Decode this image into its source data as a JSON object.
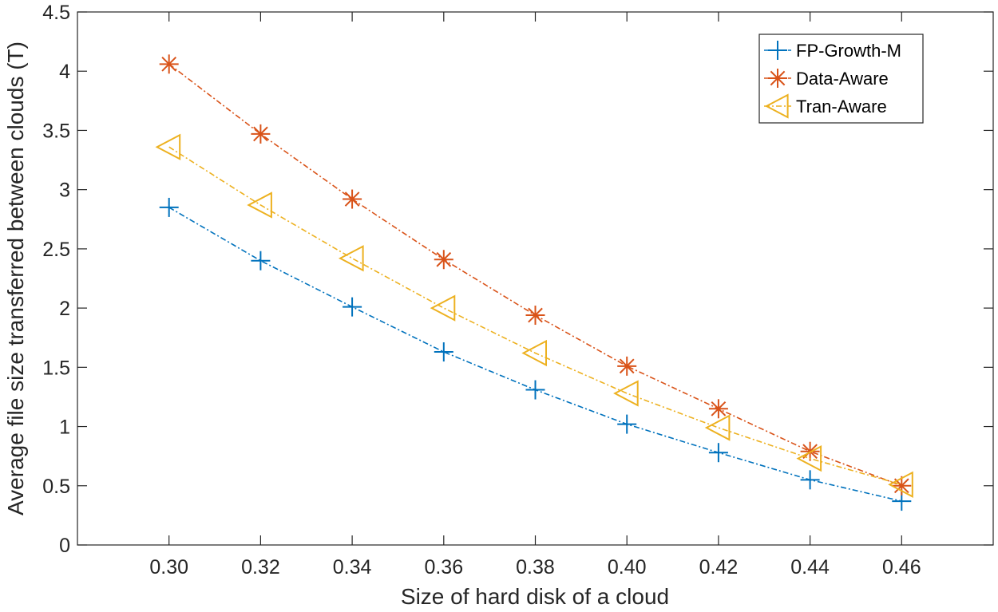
{
  "chart_data": {
    "type": "line",
    "title": "",
    "xlabel": "Size of hard disk of a cloud",
    "ylabel": "Average file size transferred between clouds (T)",
    "x": [
      0.3,
      0.32,
      0.34,
      0.36,
      0.38,
      0.4,
      0.42,
      0.44,
      0.46
    ],
    "x_tick_labels": [
      "0.30",
      "0.32",
      "0.34",
      "0.36",
      "0.38",
      "0.40",
      "0.42",
      "0.44",
      "0.46"
    ],
    "xlim": [
      0.28,
      0.48
    ],
    "ylim": [
      0,
      4.5
    ],
    "y_ticks": [
      0,
      0.5,
      1,
      1.5,
      2,
      2.5,
      3,
      3.5,
      4,
      4.5
    ],
    "y_tick_labels": [
      "0",
      "0.5",
      "1",
      "1.5",
      "2",
      "2.5",
      "3",
      "3.5",
      "4",
      "4.5"
    ],
    "grid": false,
    "legend_position": "top-right",
    "series": [
      {
        "name": "FP-Growth-M",
        "color": "#0072BD",
        "marker": "plus",
        "line_style": "dash-dot",
        "values": [
          2.85,
          2.4,
          2.01,
          1.63,
          1.31,
          1.02,
          0.78,
          0.55,
          0.37
        ]
      },
      {
        "name": "Data-Aware",
        "color": "#D95319",
        "marker": "asterisk",
        "line_style": "dash-dot",
        "values": [
          4.06,
          3.47,
          2.92,
          2.41,
          1.94,
          1.51,
          1.15,
          0.79,
          0.5
        ]
      },
      {
        "name": "Tran-Aware",
        "color": "#EDB120",
        "marker": "triangle-left",
        "line_style": "dash-dot",
        "values": [
          3.36,
          2.87,
          2.42,
          2.0,
          1.62,
          1.28,
          0.99,
          0.73,
          0.51
        ]
      }
    ]
  }
}
